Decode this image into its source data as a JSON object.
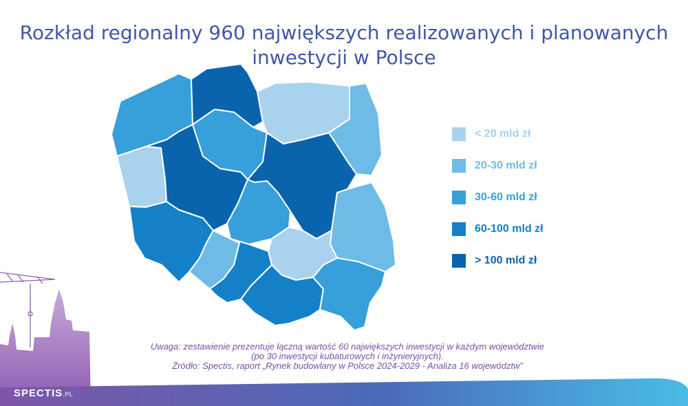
{
  "title": {
    "line1": "Rozkład regionalny 960 największych realizowanych i planowanych",
    "line2": "inwestycji w Polsce"
  },
  "legend": [
    {
      "label": "< 20 mld zł",
      "color": "#a9d2ef"
    },
    {
      "label": "20-30 mld zł",
      "color": "#6fbbe7"
    },
    {
      "label": "30-60 mld zł",
      "color": "#379fda"
    },
    {
      "label": "60-100 mld zł",
      "color": "#1480c8"
    },
    {
      "label": "> 100 mld zł",
      "color": "#0a64ad"
    }
  ],
  "map": {
    "regions": [
      {
        "id": "zachodniopomorskie",
        "color": "#379fda"
      },
      {
        "id": "pomorskie",
        "color": "#0a64ad"
      },
      {
        "id": "warminsko-mazurskie",
        "color": "#a9d2ef"
      },
      {
        "id": "podlaskie",
        "color": "#6fbbe7"
      },
      {
        "id": "lubuskie",
        "color": "#a9d2ef"
      },
      {
        "id": "wielkopolskie",
        "color": "#0a64ad"
      },
      {
        "id": "kujawsko-pomorskie",
        "color": "#379fda"
      },
      {
        "id": "mazowieckie",
        "color": "#0a64ad"
      },
      {
        "id": "lodzkie",
        "color": "#379fda"
      },
      {
        "id": "lubelskie",
        "color": "#6fbbe7"
      },
      {
        "id": "dolnoslaskie",
        "color": "#1480c8"
      },
      {
        "id": "opolskie",
        "color": "#6fbbe7"
      },
      {
        "id": "slaskie",
        "color": "#1480c8"
      },
      {
        "id": "swietokrzyskie",
        "color": "#a9d2ef"
      },
      {
        "id": "malopolskie",
        "color": "#1480c8"
      },
      {
        "id": "podkarpackie",
        "color": "#379fda"
      }
    ]
  },
  "note": {
    "line1": "Uwaga: zestawienie prezentuje łączną wartość 60 największych inwestycji w każdym województwie",
    "line2": "(po 30 inwestycji kubaturowych i inżynieryjnych).",
    "line3": "Źródło: Spectis, raport „Rynek budowlany w Polsce 2024-2029 - Analiza 16 województw”"
  },
  "logo": {
    "name": "SPECTIS",
    "suffix": ".PL"
  }
}
